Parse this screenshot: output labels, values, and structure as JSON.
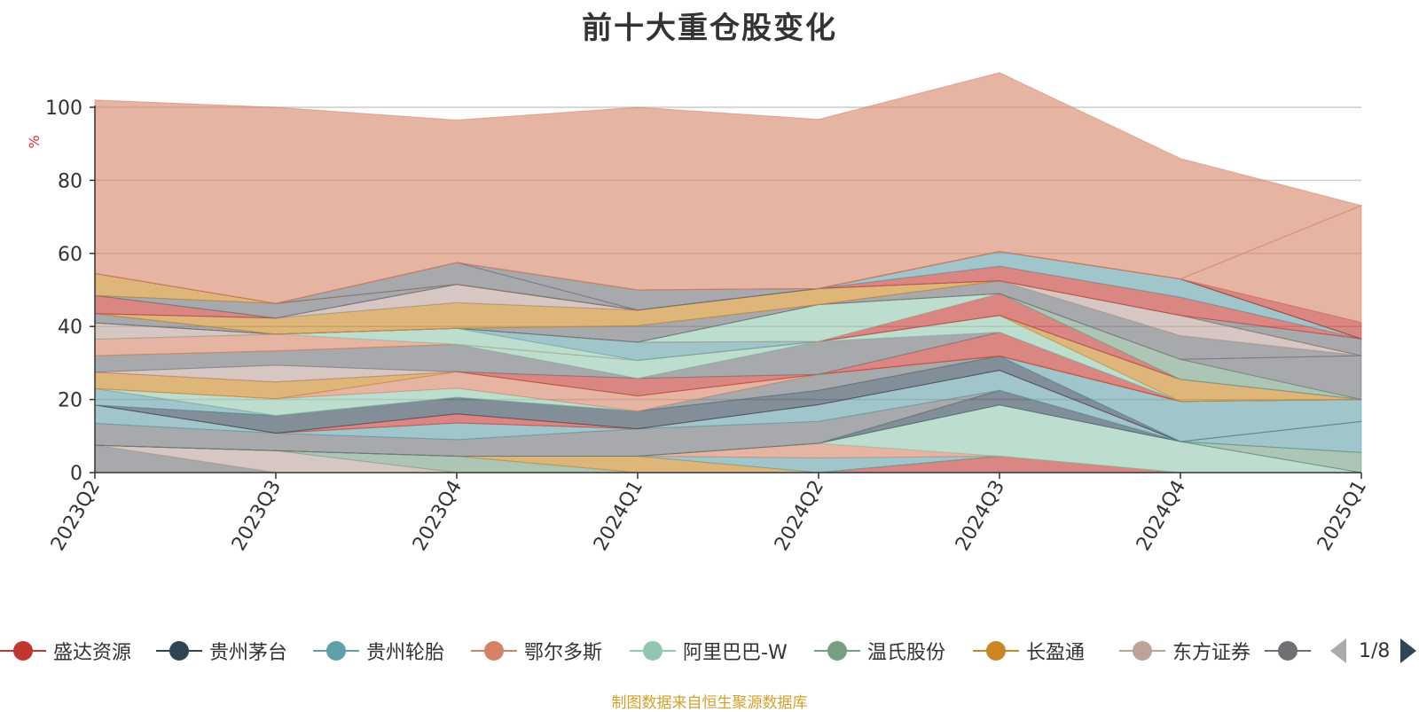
{
  "title": "前十大重仓股变化",
  "source_note": "制图数据来自恒生聚源数据库",
  "pager": {
    "text": "1/8"
  },
  "legend": [
    {
      "name": "盛达资源",
      "color": "#c23531"
    },
    {
      "name": "贵州茅台",
      "color": "#2f4554"
    },
    {
      "name": "贵州轮胎",
      "color": "#61a0a8"
    },
    {
      "name": "鄂尔多斯",
      "color": "#d48265"
    },
    {
      "name": "阿里巴巴-W",
      "color": "#91c7ae"
    },
    {
      "name": "温氏股份",
      "color": "#749f83"
    },
    {
      "name": "长盈通",
      "color": "#ca8622"
    },
    {
      "name": "东方证券",
      "color": "#bda29a"
    },
    {
      "name": "",
      "color": "#6e7074"
    }
  ],
  "chart_data": {
    "type": "area",
    "stacked": true,
    "title": "前十大重仓股变化",
    "ylabel": "%",
    "ylim": [
      0,
      100
    ],
    "yticks": [
      0,
      20,
      40,
      60,
      80,
      100
    ],
    "categories": [
      "2023Q2",
      "2023Q3",
      "2023Q4",
      "2024Q1",
      "2024Q2",
      "2024Q3",
      "2024Q4",
      "2025Q1"
    ],
    "series": [
      {
        "name": "盛达资源",
        "color": "#c23531",
        "values": [
          0,
          0,
          0,
          0,
          0,
          4.5,
          0,
          0
        ]
      },
      {
        "name": "",
        "color": "#6e7074",
        "values": [
          7.5,
          0,
          0,
          0,
          0,
          0,
          0,
          0
        ]
      },
      {
        "name": "东方证券",
        "color": "#bda29a",
        "values": [
          0,
          6,
          0,
          0,
          0,
          0,
          0,
          0
        ]
      },
      {
        "name": "温氏股份",
        "color": "#749f83",
        "values": [
          0,
          0,
          4.5,
          0,
          0,
          0,
          0,
          0
        ]
      },
      {
        "name": "长盈通",
        "color": "#ca8622",
        "values": [
          0,
          0,
          0,
          4.5,
          0,
          0,
          0,
          0
        ]
      },
      {
        "name": "贵州轮胎",
        "color": "#61a0a8",
        "values": [
          0,
          0,
          0,
          0,
          4,
          0,
          0,
          0
        ]
      },
      {
        "name": "鄂尔多斯",
        "color": "#d48265",
        "values": [
          0,
          0,
          0,
          0,
          4,
          0,
          0,
          0
        ]
      },
      {
        "name": "阿里巴巴-W",
        "color": "#91c7ae",
        "values": [
          0,
          0,
          0,
          0,
          0,
          14,
          8.5,
          0
        ]
      },
      {
        "name": "贵州茅台",
        "color": "#2f4554",
        "values": [
          0,
          0,
          0,
          0,
          0,
          4,
          0,
          0
        ]
      },
      {
        "name": "温氏股份",
        "color": "#749f83",
        "values": [
          0,
          0,
          0,
          0,
          0,
          0,
          0,
          5.5
        ]
      },
      {
        "name": "",
        "color": "#6e7074",
        "values": [
          6,
          4.8,
          4.5,
          7.5,
          6,
          0,
          0,
          0
        ]
      },
      {
        "name": "贵州轮胎",
        "color": "#61a0a8",
        "values": [
          5,
          0,
          4.6,
          0,
          4.6,
          5.5,
          0,
          8.5
        ]
      },
      {
        "name": "盛达资源",
        "color": "#c23531",
        "values": [
          0,
          0,
          2.5,
          0,
          0,
          0,
          0,
          0
        ]
      },
      {
        "name": "贵州茅台",
        "color": "#2f4554",
        "values": [
          0,
          4.8,
          4.5,
          4.8,
          3.9,
          3.9,
          0,
          0
        ]
      },
      {
        "name": "贵州轮胎",
        "color": "#61a0a8",
        "values": [
          4.5,
          0,
          0,
          0,
          0,
          0,
          11,
          6
        ]
      },
      {
        "name": "",
        "color": "#6e7074",
        "values": [
          0,
          0,
          0,
          0,
          4.4,
          0,
          0,
          0
        ]
      },
      {
        "name": "阿里巴巴-W",
        "color": "#91c7ae",
        "values": [
          0,
          4.6,
          2.5,
          0,
          0,
          0,
          0,
          0
        ]
      },
      {
        "name": "鄂尔多斯",
        "color": "#d48265",
        "values": [
          0,
          0,
          4.5,
          4.2,
          0,
          0,
          0,
          0
        ]
      },
      {
        "name": "长盈通",
        "color": "#ca8622",
        "values": [
          4.5,
          4.6,
          0,
          0,
          0,
          0,
          0,
          0
        ]
      },
      {
        "name": "盛达资源",
        "color": "#c23531",
        "values": [
          0,
          0,
          0,
          4.8,
          0,
          6.5,
          0,
          0
        ]
      },
      {
        "name": "东方证券",
        "color": "#bda29a",
        "values": [
          0,
          4.6,
          0,
          0,
          0,
          0,
          0,
          0
        ]
      },
      {
        "name": "",
        "color": "#6e7074",
        "values": [
          4.5,
          3.9,
          7.5,
          0,
          9,
          0,
          0,
          0
        ]
      },
      {
        "name": "阿里巴巴-W",
        "color": "#91c7ae",
        "values": [
          0,
          0,
          0,
          4.9,
          0,
          4.6,
          0,
          0
        ]
      },
      {
        "name": "长盈通",
        "color": "#ca8622",
        "values": [
          0,
          0,
          0,
          0,
          0,
          0,
          6,
          0
        ]
      },
      {
        "name": "鄂尔多斯",
        "color": "#d48265",
        "values": [
          4.5,
          4.6,
          0,
          0,
          0,
          0,
          0,
          0
        ]
      },
      {
        "name": "阿里巴巴-W",
        "color": "#91c7ae",
        "values": [
          0,
          0,
          4.4,
          0,
          0,
          0,
          0,
          0
        ]
      },
      {
        "name": "贵州轮胎",
        "color": "#61a0a8",
        "values": [
          0,
          0,
          0,
          5,
          0,
          0,
          0,
          0
        ]
      },
      {
        "name": "东方证券",
        "color": "#bda29a",
        "values": [
          4.5,
          0,
          0,
          0,
          0,
          0,
          0,
          0
        ]
      },
      {
        "name": "盛达资源",
        "color": "#c23531",
        "values": [
          0,
          0,
          0,
          0,
          0,
          6,
          0,
          0
        ]
      },
      {
        "name": "阿里巴巴-W",
        "color": "#91c7ae",
        "values": [
          0,
          0,
          0,
          0,
          10.1,
          0,
          0,
          0
        ]
      },
      {
        "name": "温氏股份",
        "color": "#749f83",
        "values": [
          0,
          0,
          0,
          0,
          0,
          0,
          5.5,
          0
        ]
      },
      {
        "name": "",
        "color": "#6e7074",
        "values": [
          0,
          0,
          0,
          0,
          0,
          0,
          0,
          12
        ]
      },
      {
        "name": "",
        "color": "#6e7074",
        "values": [
          2.5,
          0,
          0,
          4.5,
          0,
          3.5,
          6.5,
          0
        ]
      },
      {
        "name": "东方证券",
        "color": "#bda29a",
        "values": [
          0,
          0,
          0,
          0,
          0,
          0,
          5.5,
          0
        ]
      },
      {
        "name": "长盈通",
        "color": "#ca8622",
        "values": [
          0,
          4.4,
          7,
          4.3,
          4.4,
          0,
          0,
          0
        ]
      },
      {
        "name": "",
        "color": "#6e7074",
        "values": [
          0,
          0,
          0,
          0,
          0,
          0,
          0,
          4.6
        ]
      },
      {
        "name": "东方证券",
        "color": "#bda29a",
        "values": [
          0,
          0,
          5,
          0,
          0,
          0,
          0,
          0
        ]
      },
      {
        "name": "盛达资源",
        "color": "#c23531",
        "values": [
          5,
          0,
          0,
          0,
          0,
          4,
          5,
          0
        ]
      },
      {
        "name": "贵州轮胎",
        "color": "#61a0a8",
        "values": [
          0,
          0,
          0,
          0,
          0,
          4,
          5,
          0
        ]
      },
      {
        "name": "",
        "color": "#6e7074",
        "values": [
          0,
          4,
          0,
          0,
          0,
          0,
          0,
          0
        ]
      },
      {
        "name": "长盈通",
        "color": "#ca8622",
        "values": [
          6,
          0,
          0,
          0,
          0,
          0,
          0,
          0
        ]
      },
      {
        "name": "",
        "color": "#6e7074",
        "values": [
          0,
          0,
          6,
          0,
          0,
          0,
          0,
          0
        ]
      },
      {
        "name": "",
        "color": "#6e7074",
        "values": [
          0,
          0,
          0,
          5.5,
          0,
          0,
          0,
          0
        ]
      },
      {
        "name": "盛达资源",
        "color": "#c23531",
        "values": [
          0,
          0,
          0,
          0,
          0,
          0,
          0,
          4.5
        ]
      },
      {
        "name": "鄂尔多斯",
        "color": "#d48265",
        "values": [
          0,
          0,
          0,
          0,
          0,
          0,
          0,
          32
        ]
      },
      {
        "name": "鄂尔多斯",
        "color": "#d48265",
        "values": [
          47.5,
          53.7,
          39,
          50,
          46.3,
          49,
          33,
          0
        ]
      }
    ]
  }
}
